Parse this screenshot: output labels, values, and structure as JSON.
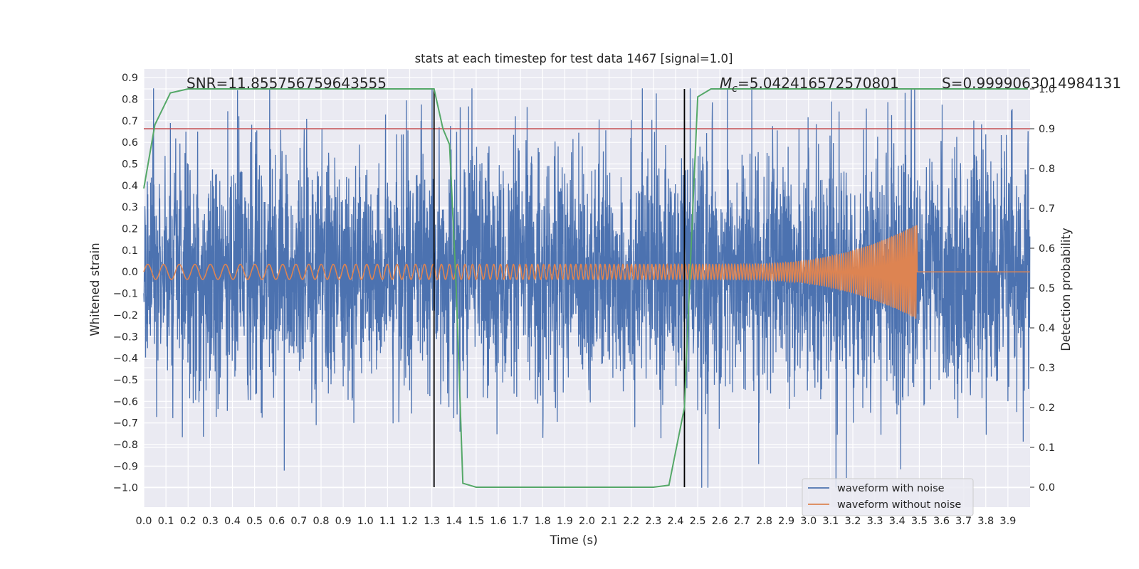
{
  "chart_data": {
    "type": "line",
    "title": "stats at each timestep for test data 1467 [signal=1.0]",
    "xlabel": "Time (s)",
    "ylabel_left": "Whitened strain",
    "ylabel_right": "Detection probability",
    "xlim": [
      0.0,
      4.0
    ],
    "ylim_left": [
      -1.09,
      0.94
    ],
    "ylim_right": [
      -0.05,
      1.05
    ],
    "x_ticks": [
      "0.0",
      "0.1",
      "0.2",
      "0.3",
      "0.4",
      "0.5",
      "0.6",
      "0.7",
      "0.8",
      "0.9",
      "1.0",
      "1.1",
      "1.2",
      "1.3",
      "1.4",
      "1.5",
      "1.6",
      "1.7",
      "1.8",
      "1.9",
      "2.0",
      "2.1",
      "2.2",
      "2.3",
      "2.4",
      "2.5",
      "2.6",
      "2.7",
      "2.8",
      "2.9",
      "3.0",
      "3.1",
      "3.2",
      "3.3",
      "3.4",
      "3.5",
      "3.6",
      "3.7",
      "3.8",
      "3.9"
    ],
    "y_ticks_left": [
      "0.9",
      "0.8",
      "0.7",
      "0.6",
      "0.5",
      "0.4",
      "0.3",
      "0.2",
      "0.1",
      "0.0",
      "−0.1",
      "−0.2",
      "−0.3",
      "−0.4",
      "−0.5",
      "−0.6",
      "−0.7",
      "−0.8",
      "−0.9",
      "−1.0"
    ],
    "y_ticks_right": [
      "1.0",
      "0.9",
      "0.8",
      "0.7",
      "0.6",
      "0.5",
      "0.4",
      "0.3",
      "0.2",
      "0.1",
      "0.0"
    ],
    "annotations": {
      "snr": "SNR=11.855756759643555",
      "mc_symbol": "M",
      "mc_sub": "c",
      "mc_value": "=5.042416572570801",
      "s": "S=0.9999063014984131"
    },
    "threshold": {
      "value": 0.9,
      "axis": "right",
      "color": "#c44e52"
    },
    "vlines": [
      1.31,
      2.44
    ],
    "series": [
      {
        "name": "waveform with noise",
        "color": "#4c72b0",
        "axis": "left",
        "kind": "noise",
        "amplitude_range": [
          -1.0,
          0.85
        ]
      },
      {
        "name": "waveform without noise",
        "color": "#dd8452",
        "axis": "left",
        "kind": "chirp",
        "start_amplitude": 0.035,
        "peak_amplitude": 0.22,
        "merger_time": 3.49
      },
      {
        "name": "detection probability",
        "color": "#55a868",
        "axis": "right",
        "x": [
          0.0,
          0.05,
          0.12,
          0.2,
          0.5,
          0.8,
          1.1,
          1.25,
          1.31,
          1.35,
          1.38,
          1.41,
          1.44,
          1.5,
          1.8,
          2.1,
          2.3,
          2.37,
          2.44,
          2.47,
          2.5,
          2.56,
          2.7,
          3.0,
          3.3,
          3.6,
          3.9,
          3.99
        ],
        "y": [
          0.75,
          0.91,
          0.99,
          1.0,
          1.0,
          1.0,
          1.0,
          1.0,
          1.0,
          0.9,
          0.86,
          0.5,
          0.01,
          0.0,
          0.0,
          0.0,
          0.0,
          0.005,
          0.2,
          0.6,
          0.98,
          1.0,
          1.0,
          1.0,
          1.0,
          1.0,
          1.0,
          1.0
        ]
      }
    ],
    "legend": {
      "placement": "lower-right",
      "entries": [
        "waveform with noise",
        "waveform without noise"
      ]
    },
    "grid": true
  }
}
